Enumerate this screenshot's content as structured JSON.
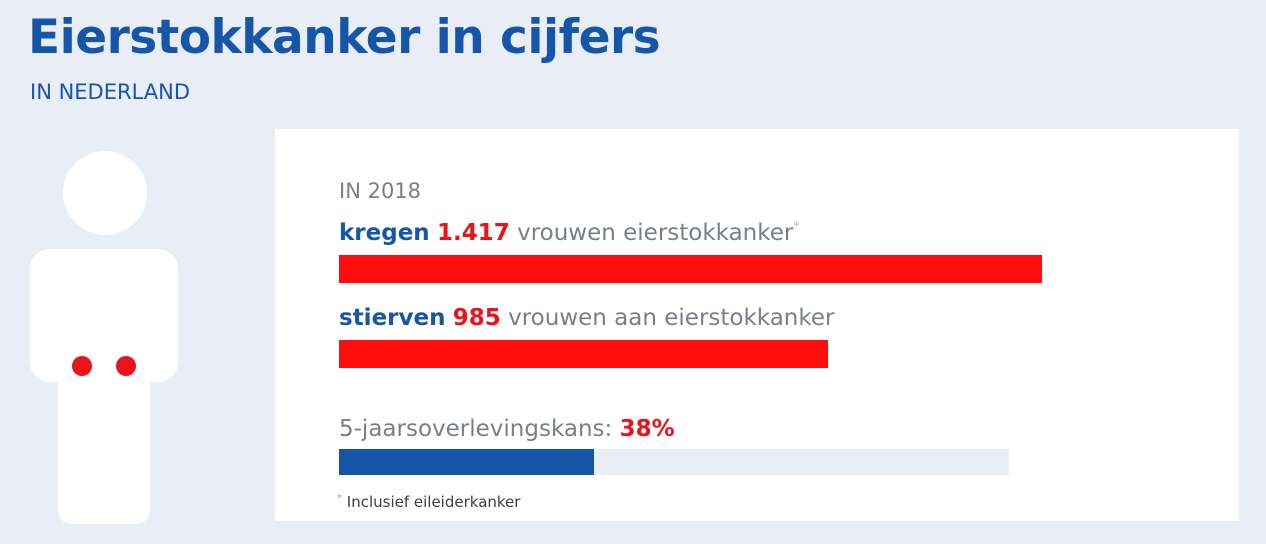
{
  "header": {
    "title": "Eierstokkanker in cijfers",
    "subtitle": "IN NEDERLAND"
  },
  "colors": {
    "brand_blue": "#1656a8",
    "accent_red": "#e8141b",
    "text_gray": "#7a7f87",
    "background": "#e9eef6",
    "card": "#ffffff"
  },
  "card": {
    "year_label": "IN 2018",
    "footnote_marker": "*",
    "footnote": "Inclusief eileiderkanker"
  },
  "chart_data": {
    "type": "bar",
    "orientation": "horizontal",
    "series": [
      {
        "verb": "kregen",
        "value_label": "1.417",
        "text": "vrouwen eierstokkanker",
        "marker": "*",
        "value": 1417,
        "color": "#ff0d0d"
      },
      {
        "verb": "stierven",
        "value_label": "985",
        "text": "vrouwen aan eierstokkanker",
        "value": 985,
        "color": "#ff0d0d"
      }
    ],
    "survival": {
      "label": "5-jaarsoverlevingskans:",
      "value_label": "38%",
      "value": 38,
      "max": 100,
      "color": "#1656a8"
    }
  }
}
